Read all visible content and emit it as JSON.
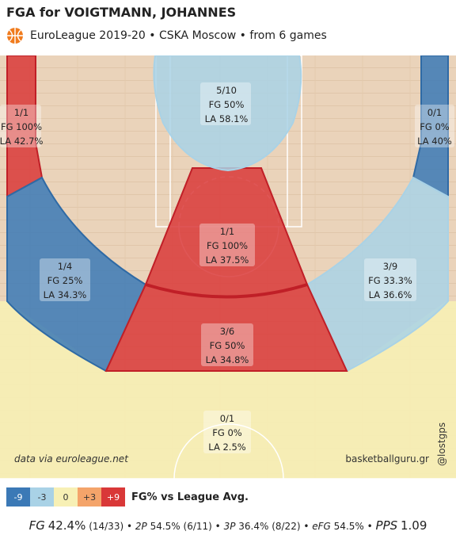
{
  "header": {
    "title": "FGA for VOIGTMANN, JOHANNES",
    "subtitle": "EuroLeague 2019-20 • CSKA Moscow • from  6 games"
  },
  "credits": {
    "left": "data via euroleague.net",
    "right": "basketballguru.gr",
    "vertical": "@lostgps"
  },
  "legend": {
    "title": "FG% vs League Avg.",
    "items": [
      {
        "label": "-9",
        "color": "#3b79b6"
      },
      {
        "label": "-3",
        "color": "#a9d2e6"
      },
      {
        "label": "0",
        "color": "#f7f0b5"
      },
      {
        "label": "+3",
        "color": "#f4a46a"
      },
      {
        "label": "+9",
        "color": "#d93838"
      }
    ]
  },
  "stats": {
    "fg_label": "FG",
    "fg_pct": "42.4%",
    "fg_made_att": "(14/33)",
    "p2_label": "2P",
    "p2_value": "54.5% (6/11)",
    "p3_label": "3P",
    "p3_value": "36.4% (8/22)",
    "efg_label": "eFG",
    "efg_value": "54.5%",
    "pps_label": "PPS",
    "pps_value": "1.09",
    "sep": "•"
  },
  "chart_data": {
    "type": "heatmap",
    "zones": [
      {
        "zone": "left-corner-3",
        "made_att": "1/1",
        "fg": "FG 100%",
        "la": "LA 42.7%",
        "fg_pct": 100,
        "la_pct": 42.7,
        "color": "#d93838"
      },
      {
        "zone": "left-wing-3",
        "made_att": "1/4",
        "fg": "FG 25%",
        "la": "LA 34.3%",
        "fg_pct": 25,
        "la_pct": 34.3,
        "color": "#3b79b6"
      },
      {
        "zone": "top-key-3",
        "made_att": "3/6",
        "fg": "FG 50%",
        "la": "LA 34.8%",
        "fg_pct": 50,
        "la_pct": 34.8,
        "color": "#d93838"
      },
      {
        "zone": "right-wing-3",
        "made_att": "3/9",
        "fg": "FG 33.3%",
        "la": "LA 36.6%",
        "fg_pct": 33.3,
        "la_pct": 36.6,
        "color": "#a9d2e6"
      },
      {
        "zone": "right-corner-3",
        "made_att": "0/1",
        "fg": "FG 0%",
        "la": "LA 40%",
        "fg_pct": 0,
        "la_pct": 40,
        "color": "#3b79b6"
      },
      {
        "zone": "restricted-area",
        "made_att": "5/10",
        "fg": "FG 50%",
        "la": "LA 58.1%",
        "fg_pct": 50,
        "la_pct": 58.1,
        "color": "#a9d2e6"
      },
      {
        "zone": "mid-range-top",
        "made_att": "1/1",
        "fg": "FG 100%",
        "la": "LA 37.5%",
        "fg_pct": 100,
        "la_pct": 37.5,
        "color": "#d93838"
      },
      {
        "zone": "backcourt",
        "made_att": "0/1",
        "fg": "FG 0%",
        "la": "LA 2.5%",
        "fg_pct": 0,
        "la_pct": 2.5,
        "color": "#f7f0b5"
      }
    ]
  }
}
